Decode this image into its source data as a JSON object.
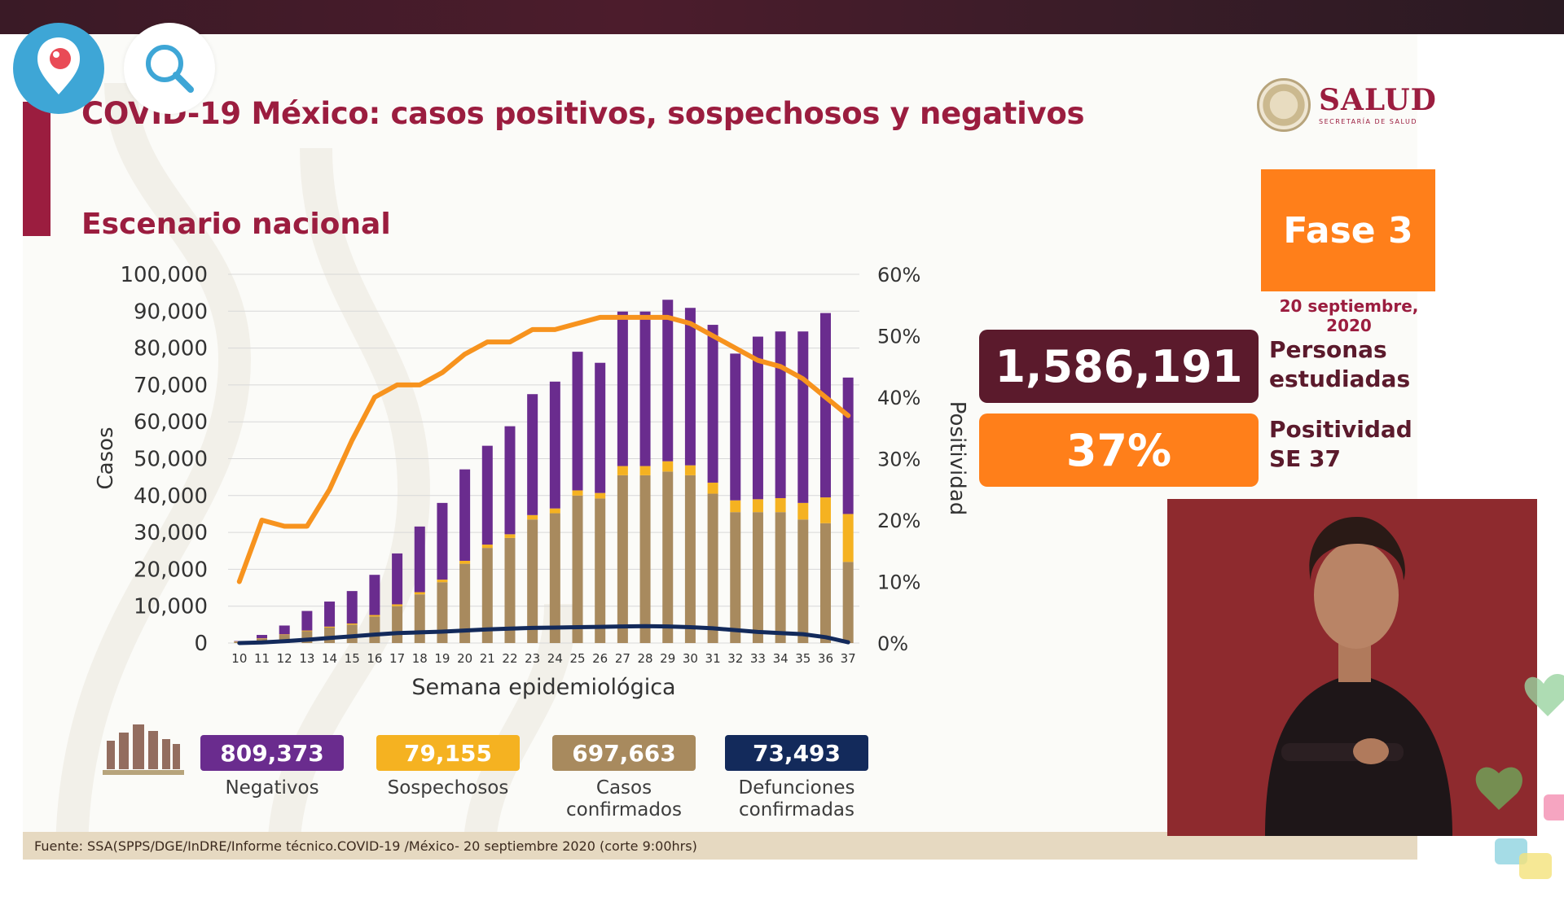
{
  "header": {
    "title": "COVID-19 México: casos positivos, sospechosos y negativos",
    "subtitle": "Escenario nacional"
  },
  "logo": {
    "word": "SALUD",
    "sub": "SECRETARÍA DE SALUD"
  },
  "fase": {
    "label": "Fase 3",
    "date": "20 septiembre, 2020"
  },
  "stats": {
    "personas_value": "1,586,191",
    "personas_label": "Personas estudiadas",
    "positividad_value": "37%",
    "positividad_label": "Positividad SE 37"
  },
  "summary": [
    {
      "value": "809,373",
      "label": "Negativos",
      "color": "#6a2c8e"
    },
    {
      "value": "79,155",
      "label": "Sospechosos",
      "color": "#f5b221"
    },
    {
      "value": "697,663",
      "label": "Casos confirmados",
      "color": "#a88a5e"
    },
    {
      "value": "73,493",
      "label": "Defunciones confirmadas",
      "color": "#132a5b"
    }
  ],
  "footer": {
    "source": "Fuente: SSA(SPPS/DGE/InDRE/Informe técnico.COVID-19 /México- 20 septiembre 2020 (corte 9:00hrs)"
  },
  "colors": {
    "accent": "#9b1d3f",
    "orange": "#ff7f1a",
    "dark": "#5b1a2c"
  },
  "icons": {
    "periscope": "periscope-icon",
    "search": "search-icon"
  },
  "chart_data": {
    "type": "bar",
    "stacked": true,
    "xlabel": "Semana epidemiológica",
    "ylabel": "Casos",
    "y2label": "Positividad",
    "ylim": [
      0,
      100000
    ],
    "y2lim": [
      0,
      60
    ],
    "yticks": [
      "100,000",
      "90,000",
      "80,000",
      "70,000",
      "60,000",
      "50,000",
      "40,000",
      "30,000",
      "20,000",
      "10,000",
      "0"
    ],
    "y2ticks": [
      "60%",
      "50%",
      "40%",
      "30%",
      "20%",
      "10%",
      "0%"
    ],
    "grid": true,
    "categories": [
      "10",
      "11",
      "12",
      "13",
      "14",
      "15",
      "16",
      "17",
      "18",
      "19",
      "20",
      "21",
      "22",
      "23",
      "24",
      "25",
      "26",
      "27",
      "28",
      "29",
      "30",
      "31",
      "32",
      "33",
      "34",
      "35",
      "36",
      "37"
    ],
    "series": [
      {
        "type": "bar",
        "color": "#a88a5e",
        "values": [
          400,
          1200,
          2200,
          3200,
          4200,
          5000,
          7200,
          10000,
          13200,
          16500,
          21500,
          25800,
          28500,
          33500,
          35200,
          40000,
          39200,
          45500,
          45500,
          46500,
          45500,
          40500,
          35500,
          35500,
          35500,
          33500,
          32500,
          22000
        ]
      },
      {
        "type": "bar",
        "color": "#f5b221",
        "values": [
          50,
          100,
          150,
          200,
          250,
          300,
          400,
          500,
          600,
          700,
          800,
          900,
          1000,
          1200,
          1300,
          1400,
          1500,
          2500,
          2500,
          2800,
          2700,
          3000,
          3200,
          3500,
          3800,
          4500,
          7000,
          13000
        ]
      },
      {
        "type": "bar",
        "color": "#6a2c8e",
        "values": [
          100,
          900,
          2400,
          5300,
          6800,
          8800,
          10900,
          13800,
          17800,
          20800,
          24800,
          26800,
          29300,
          32800,
          34400,
          37600,
          35300,
          41900,
          41900,
          43800,
          42700,
          42800,
          39800,
          44100,
          45200,
          46500,
          50000,
          37000
        ]
      },
      {
        "type": "line",
        "axis": "y2",
        "color": "#f7931e",
        "values": [
          10,
          20,
          19,
          19,
          25,
          33,
          40,
          42,
          42,
          44,
          47,
          49,
          49,
          51,
          51,
          52,
          53,
          53,
          53,
          53,
          52,
          50,
          48,
          46,
          45,
          43,
          40,
          37
        ]
      },
      {
        "type": "line",
        "axis": "y",
        "color": "#132a5b",
        "values": [
          0,
          150,
          500,
          900,
          1400,
          1800,
          2300,
          2700,
          2900,
          3100,
          3400,
          3700,
          3900,
          4100,
          4200,
          4300,
          4400,
          4500,
          4600,
          4500,
          4300,
          4000,
          3500,
          3000,
          2700,
          2400,
          1600,
          200
        ]
      }
    ]
  }
}
